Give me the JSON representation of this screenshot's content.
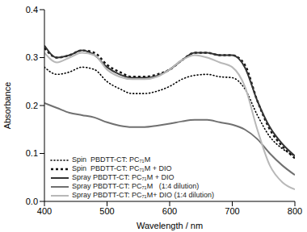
{
  "chart_data": {
    "type": "line",
    "x_label": "Wavelength / nm",
    "y_label": "Absorbance",
    "x": [
      400,
      420,
      440,
      460,
      480,
      500,
      520,
      540,
      560,
      580,
      600,
      620,
      640,
      660,
      680,
      700,
      720,
      740,
      760,
      780,
      800
    ],
    "xlim": [
      400,
      800
    ],
    "xticks": [
      400,
      500,
      600,
      700,
      800
    ],
    "ylim": [
      0,
      0.4
    ],
    "yticks": [
      {
        "value": 0,
        "label": "0.0"
      },
      0.1,
      0.2,
      0.3,
      0.4
    ],
    "legend": "lower left",
    "series": [
      {
        "name": "Spin  PBDTT-CT: PC₇₁M",
        "color": "#000000",
        "line_style": "dotted",
        "values": [
          0.28,
          0.265,
          0.27,
          0.28,
          0.275,
          0.25,
          0.235,
          0.225,
          0.225,
          0.23,
          0.24,
          0.255,
          0.263,
          0.265,
          0.26,
          0.258,
          0.235,
          0.18,
          0.135,
          0.11,
          0.095
        ]
      },
      {
        "name": "Spin  PBDTT-CT: PC₇₁M + DIO",
        "color": "#111111",
        "line_style": "dashed",
        "values": [
          0.32,
          0.3,
          0.305,
          0.315,
          0.31,
          0.285,
          0.27,
          0.26,
          0.26,
          0.265,
          0.275,
          0.295,
          0.31,
          0.31,
          0.305,
          0.305,
          0.285,
          0.21,
          0.15,
          0.115,
          0.09
        ]
      },
      {
        "name": "Spray PBDTT-CT: PC₇₁M + DIO",
        "color": "#333333",
        "line_style": "solid",
        "values": [
          0.325,
          0.3,
          0.305,
          0.315,
          0.305,
          0.28,
          0.265,
          0.258,
          0.258,
          0.262,
          0.275,
          0.295,
          0.31,
          0.31,
          0.305,
          0.305,
          0.28,
          0.21,
          0.155,
          0.12,
          0.095
        ]
      },
      {
        "name": "Spray PBDTT-CT: PC₇₁M   (1:4 dilution)",
        "color": "#707070",
        "line_style": "solid",
        "values": [
          0.205,
          0.195,
          0.185,
          0.18,
          0.175,
          0.165,
          0.158,
          0.155,
          0.155,
          0.158,
          0.162,
          0.167,
          0.17,
          0.17,
          0.165,
          0.16,
          0.15,
          0.13,
          0.1,
          0.075,
          0.055
        ]
      },
      {
        "name": "Spray PBDTT-CT: PC₇₁M+ DIO (1:4 dilution)",
        "color": "#b8b8b8",
        "line_style": "solid",
        "values": [
          0.31,
          0.29,
          0.3,
          0.31,
          0.305,
          0.275,
          0.26,
          0.255,
          0.255,
          0.26,
          0.275,
          0.295,
          0.305,
          0.3,
          0.29,
          0.28,
          0.24,
          0.15,
          0.075,
          0.04,
          0.025
        ]
      }
    ]
  }
}
